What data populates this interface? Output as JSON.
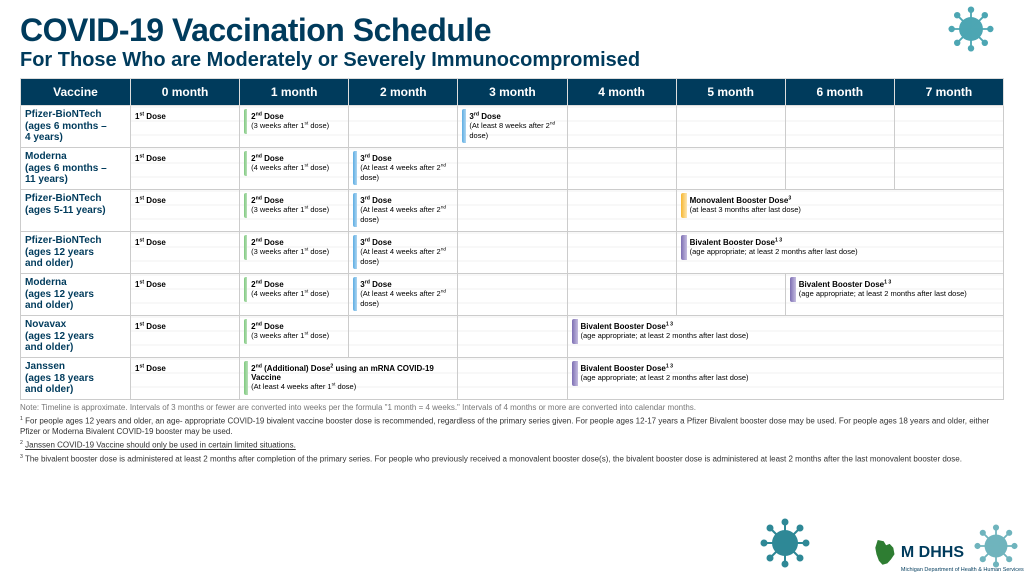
{
  "header": {
    "title": "COVID-19 Vaccination Schedule",
    "subtitle": "For Those Who are Moderately or Severely Immunocompromised"
  },
  "colors": {
    "brand_dark": "#003b5c",
    "header_bg": "#003b5c"
  },
  "table": {
    "columns": [
      "Vaccine",
      "0 month",
      "1 month",
      "2 month",
      "3 month",
      "4 month",
      "5 month",
      "6 month",
      "7 month"
    ],
    "rows": [
      {
        "vaccine_html": "Pfizer-BioNTech<br>(ages 6 months –<br>4 years)",
        "cells": [
          {
            "col": 1,
            "span": 1,
            "cls": "first-dose",
            "title": "1<sup>st</sup> Dose",
            "sub": ""
          },
          {
            "col": 2,
            "span": 1,
            "cls": "second-dose",
            "title": "2<sup>nd</sup> Dose",
            "sub": "(3 weeks after 1<sup>st</sup> dose)"
          },
          {
            "col": 4,
            "span": 1,
            "cls": "third-dose",
            "title": "3<sup>rd</sup> Dose",
            "sub": "(At least 8 weeks after 2<sup>nd</sup> dose)"
          }
        ]
      },
      {
        "vaccine_html": "Moderna<br>(ages 6 months –<br>11 years)",
        "cells": [
          {
            "col": 1,
            "span": 1,
            "cls": "first-dose",
            "title": "1<sup>st</sup> Dose",
            "sub": ""
          },
          {
            "col": 2,
            "span": 1,
            "cls": "second-dose",
            "title": "2<sup>nd</sup> Dose",
            "sub": "(4 weeks after 1<sup>st</sup> dose)"
          },
          {
            "col": 3,
            "span": 1,
            "cls": "third-dose",
            "title": "3<sup>rd</sup> Dose",
            "sub": "(At least 4 weeks after 2<sup>nd</sup> dose)"
          }
        ]
      },
      {
        "vaccine_html": "Pfizer-BioNTech<br>(ages 5-11 years)",
        "cells": [
          {
            "col": 1,
            "span": 1,
            "cls": "first-dose",
            "title": "1<sup>st</sup> Dose",
            "sub": ""
          },
          {
            "col": 2,
            "span": 1,
            "cls": "second-dose",
            "title": "2<sup>nd</sup> Dose",
            "sub": "(3 weeks after 1<sup>st</sup> dose)"
          },
          {
            "col": 3,
            "span": 1,
            "cls": "third-dose",
            "title": "3<sup>rd</sup> Dose",
            "sub": "(At least 4 weeks after 2<sup>nd</sup> dose)"
          },
          {
            "col": 6,
            "span": 3,
            "cls": "booster-mono",
            "title": "Monovalent Booster Dose<sup>3</sup>",
            "sub": "(at least 3 months after last dose)"
          }
        ]
      },
      {
        "vaccine_html": "Pfizer-BioNTech<br>(ages 12 years<br>and older)",
        "cells": [
          {
            "col": 1,
            "span": 1,
            "cls": "first-dose",
            "title": "1<sup>st</sup> Dose",
            "sub": ""
          },
          {
            "col": 2,
            "span": 1,
            "cls": "second-dose",
            "title": "2<sup>nd</sup> Dose",
            "sub": "(3 weeks after 1<sup>st</sup> dose)"
          },
          {
            "col": 3,
            "span": 1,
            "cls": "third-dose",
            "title": "3<sup>rd</sup> Dose",
            "sub": "(At least 4 weeks after 2<sup>nd</sup> dose)"
          },
          {
            "col": 6,
            "span": 3,
            "cls": "booster-biv",
            "title": "Bivalent Booster Dose<sup>1 3</sup>",
            "sub": "(age appropriate; at least 2 months after last dose)"
          }
        ]
      },
      {
        "vaccine_html": "Moderna<br>(ages 12 years<br>and older)",
        "cells": [
          {
            "col": 1,
            "span": 1,
            "cls": "first-dose",
            "title": "1<sup>st</sup> Dose",
            "sub": ""
          },
          {
            "col": 2,
            "span": 1,
            "cls": "second-dose",
            "title": "2<sup>nd</sup> Dose",
            "sub": "(4 weeks after 1<sup>st</sup> dose)"
          },
          {
            "col": 3,
            "span": 1,
            "cls": "third-dose",
            "title": "3<sup>rd</sup> Dose",
            "sub": "(At least 4 weeks after 2<sup>nd</sup> dose)"
          },
          {
            "col": 7,
            "span": 2,
            "cls": "booster-biv",
            "title": "Bivalent Booster Dose<sup>1 3</sup>",
            "sub": "(age appropriate; at least 2 months after last dose)"
          }
        ]
      },
      {
        "vaccine_html": "Novavax<br>(ages 12 years<br>and older)",
        "cells": [
          {
            "col": 1,
            "span": 1,
            "cls": "first-dose",
            "title": "1<sup>st</sup> Dose",
            "sub": ""
          },
          {
            "col": 2,
            "span": 1,
            "cls": "second-dose",
            "title": "2<sup>nd</sup> Dose",
            "sub": "(3 weeks after 1<sup>st</sup> dose)"
          },
          {
            "col": 5,
            "span": 4,
            "cls": "booster-biv",
            "title": "Bivalent Booster Dose<sup>1 3</sup>",
            "sub": "(age appropriate; at least 2 months after last dose)"
          }
        ]
      },
      {
        "vaccine_html": "Janssen<br>(ages 18 years<br>and older)",
        "cells": [
          {
            "col": 1,
            "span": 1,
            "cls": "first-dose",
            "title": "1<sup>st</sup> Dose",
            "sub": ""
          },
          {
            "col": 2,
            "span": 2,
            "cls": "additional-dose",
            "title": "2<sup>nd</sup> (Additional) Dose<sup>2</sup> using an mRNA COVID-19 Vaccine",
            "sub": "(At least 4 weeks after 1<sup>st</sup> dose)"
          },
          {
            "col": 5,
            "span": 4,
            "cls": "booster-biv",
            "title": "Bivalent Booster Dose<sup>1 3</sup>",
            "sub": "(age appropriate; at least 2 months after last dose)"
          }
        ]
      }
    ]
  },
  "note": "Note: Timeline is approximate. Intervals of 3 months or fewer are converted into weeks per the formula \"1 month = 4 weeks.\" Intervals of 4 months or more are converted into calendar months.",
  "footnotes": [
    "<sup>1</sup> For people ages 12 years and older, an age- appropriate COVID-19 bivalent vaccine booster dose is recommended, regardless of the primary series given. For people ages 12-17 years a Pfizer Bivalent booster dose may be used. For people ages 18 years and older, either Pfizer or Moderna Bivalent COVID-19 booster may be used.",
    "<sup>2</sup> <u>Janssen COVID-19 Vaccine should only be used in certain limited situations.</u>",
    "<sup>3</sup> The bivalent booster dose is administered at least 2 months after completion of the primary series. For people who previously received a monovalent booster dose(s), the bivalent booster dose is administered at least 2 months after the last monovalent booster dose."
  ],
  "logo": {
    "text": "M DHHS",
    "sub": "Michigan Department of Health & Human Services"
  }
}
